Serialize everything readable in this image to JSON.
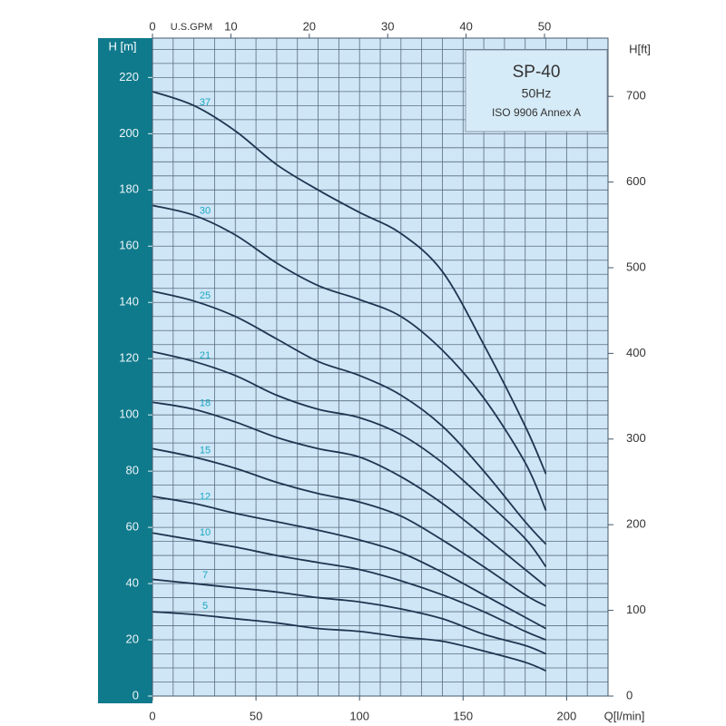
{
  "chart_data": {
    "type": "line",
    "ylabel": "H [m]",
    "y2label": "H[ft]",
    "xlabel": "Q[l/min]",
    "x2label": "U.S.GPM",
    "annotations": [
      "SP-40",
      "50Hz",
      "ISO 9906 Annex A"
    ],
    "x": [
      0,
      20,
      40,
      60,
      80,
      100,
      120,
      140,
      160,
      180,
      190
    ],
    "xlim": [
      0,
      220
    ],
    "xticks": [
      0,
      50,
      100,
      150,
      200
    ],
    "x2lim": [
      0,
      58.1
    ],
    "x2ticks": [
      0,
      10,
      20,
      30,
      40,
      50
    ],
    "ylim": [
      0,
      234
    ],
    "yticks": [
      0,
      20,
      40,
      60,
      80,
      100,
      120,
      140,
      160,
      180,
      200,
      220
    ],
    "y2lim": [
      0,
      768
    ],
    "y2ticks": [
      0,
      100,
      200,
      300,
      400,
      500,
      600,
      700
    ],
    "grid": true,
    "series": [
      {
        "name": "37",
        "color": "#1f3550",
        "values": [
          215,
          210,
          201,
          189,
          180,
          172,
          164.5,
          151,
          125,
          96,
          79
        ]
      },
      {
        "name": "30",
        "color": "#1f3550",
        "values": [
          174.5,
          171,
          164,
          154,
          146,
          141,
          135,
          123,
          106,
          83,
          66
        ]
      },
      {
        "name": "25",
        "color": "#1f3550",
        "values": [
          144,
          140.5,
          135,
          127,
          119,
          114,
          107,
          96,
          80,
          62,
          54
        ]
      },
      {
        "name": "21",
        "color": "#1f3550",
        "values": [
          122.5,
          119,
          114,
          107,
          102,
          99,
          93,
          83,
          70,
          56,
          46
        ]
      },
      {
        "name": "18",
        "color": "#1f3550",
        "values": [
          104.5,
          102,
          97.5,
          92,
          88,
          85,
          78,
          68.5,
          57,
          45,
          39
        ]
      },
      {
        "name": "15",
        "color": "#1f3550",
        "values": [
          88,
          85,
          81,
          76,
          72,
          69,
          64,
          55.5,
          46,
          36,
          32
        ]
      },
      {
        "name": "12",
        "color": "#1f3550",
        "values": [
          71,
          68.5,
          65,
          62,
          59,
          55.5,
          51,
          44,
          36,
          28,
          24
        ]
      },
      {
        "name": "10",
        "color": "#1f3550",
        "values": [
          58,
          55.5,
          53,
          50,
          47.5,
          45,
          41,
          36,
          30,
          23,
          20
        ]
      },
      {
        "name": "7",
        "color": "#1f3550",
        "values": [
          41.5,
          40,
          38.5,
          37,
          35,
          33.5,
          31,
          27.5,
          22,
          18,
          15
        ]
      },
      {
        "name": "5",
        "color": "#1f3550",
        "values": [
          30,
          29,
          27.5,
          26,
          24,
          23,
          21,
          19.5,
          16,
          12,
          9
        ]
      }
    ]
  }
}
